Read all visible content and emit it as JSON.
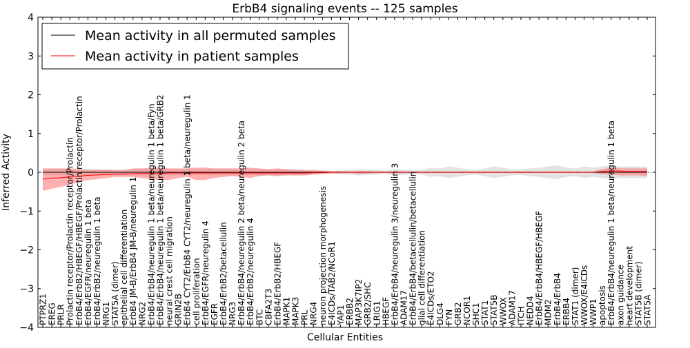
{
  "chart_data": {
    "type": "line",
    "title": "ErbB4 signaling events -- 125 samples",
    "xlabel": "Cellular Entities",
    "ylabel": "Inferred Activity",
    "ylim": [
      -4,
      4
    ],
    "yticks": [
      -4,
      -3,
      -2,
      -1,
      0,
      1,
      2,
      3,
      4
    ],
    "ytick_labels": [
      "−4",
      "−3",
      "−2",
      "−1",
      "0",
      "1",
      "2",
      "3",
      "4"
    ],
    "grid": false,
    "legend_position": "top-left",
    "categories": [
      "PTPRZ1",
      "EREG",
      "PRLR",
      "Prolactin receptor/Prolactin receptor/Prolactin",
      "ErbB4/ErbB2/HBEGF/HBEGF/Prolactin receptor/Prolactin",
      "ErbB4/EGFR/neuregulin 1 beta",
      "ErbB4/ErbB2/neuregulin 1 beta",
      "NRG1",
      "STAT5A (dimer)",
      "epithelial cell differentiation",
      "ErbB4 JM-B/ErbB4 JM-B/neuregulin 1",
      "NRG2",
      "ErbB4/ErbB4/neuregulin 1 beta/neuregulin 1 beta/Fyn",
      "ErbB4/ErbB4/neuregulin 1 beta/neuregulin 1 beta/GRB2",
      "neural crest cell migration",
      "GRIN2B",
      "ErbB4 CYT2/ErbB4 CYT2/neuregulin 1 beta/neuregulin 1",
      "cell proliferation",
      "ErbB4/EGFR/neuregulin 4",
      "EGFR",
      "ErbB4/ErbB2/betacellulin",
      "NRG3",
      "ErbB4/ErbB4/neuregulin 2 beta/neuregulin 2 beta",
      "ErbB4/ErbB2/neuregulin 4",
      "BTC",
      "CBFA2T3",
      "ErbB4/ErbB2/HBEGF",
      "MAPK1",
      "MAPK3",
      "PRL",
      "NRG4",
      "neuron projection morphogenesis",
      "E4ICDs/TAB2/NCoR1",
      "YAP1",
      "ERBB2",
      "MAP3K7IP2",
      "GRB2/SHC",
      "LRIG1",
      "HBEGF",
      "ErbB4/ErbB4/neuregulin 3/neuregulin 3",
      "ADAM17",
      "ErbB4/ErbB4/betacellulin/betacellulin",
      "glial cell differentiation",
      "E4ICDs/ETO2",
      "DLG4",
      "FYN",
      "GRB2",
      "NCOR1",
      "SHC1",
      "STAT1",
      "STAT5B",
      "WWOX",
      "ADAM17",
      "ITCH",
      "NEDD4",
      "ErbB4/ErbB4/HBEGF/HBEGF",
      "MDM2",
      "ErbB4/ErbB4",
      "ERBB4",
      "STAT1 (dimer)",
      "WWOX/E4ICDs",
      "WWP1",
      "apoptosis",
      "ErbB4/ErbB4/neuregulin 1 beta/neuregulin 1 beta",
      "axon guidance",
      "heart development",
      "STAT5B (dimer)",
      "STAT5A"
    ],
    "series": [
      {
        "name": "Mean activity in all permuted samples",
        "color": "#000000",
        "band_color": "#c0c0c0",
        "values": [
          0.0,
          0.0,
          0.0,
          0.0,
          0.0,
          0.0,
          0.0,
          0.0,
          0.0,
          0.0,
          0.0,
          0.0,
          0.0,
          0.0,
          0.0,
          0.0,
          0.0,
          0.0,
          0.0,
          0.0,
          0.0,
          0.0,
          0.0,
          0.0,
          0.0,
          0.0,
          0.0,
          0.0,
          0.0,
          0.0,
          0.0,
          0.0,
          0.0,
          0.0,
          0.0,
          0.0,
          0.0,
          0.0,
          0.0,
          0.0,
          0.0,
          0.0,
          0.0,
          0.0,
          0.0,
          0.0,
          0.0,
          0.0,
          0.0,
          0.0,
          0.0,
          0.0,
          0.0,
          0.0,
          0.0,
          0.0,
          0.0,
          0.0,
          0.0,
          0.0,
          0.0,
          0.0,
          0.0,
          0.0,
          0.0,
          0.0,
          0.0,
          0.0
        ],
        "lower": [
          -0.08,
          -0.08,
          -0.08,
          -0.08,
          -0.08,
          -0.08,
          -0.08,
          -0.08,
          -0.08,
          -0.08,
          -0.08,
          -0.08,
          -0.08,
          -0.08,
          -0.08,
          -0.08,
          -0.08,
          -0.08,
          -0.08,
          -0.08,
          -0.08,
          -0.08,
          -0.08,
          -0.08,
          -0.08,
          -0.08,
          -0.08,
          -0.08,
          -0.08,
          -0.08,
          -0.06,
          -0.05,
          -0.04,
          -0.05,
          -0.06,
          -0.08,
          -0.07,
          -0.06,
          -0.04,
          -0.08,
          -0.07,
          -0.05,
          -0.06,
          -0.12,
          -0.1,
          -0.15,
          -0.12,
          -0.08,
          -0.06,
          -0.1,
          -0.15,
          -0.12,
          -0.08,
          -0.07,
          -0.1,
          -0.12,
          -0.15,
          -0.18,
          -0.12,
          -0.1,
          -0.15,
          -0.12,
          -0.15,
          -0.18,
          -0.15,
          -0.15,
          -0.15,
          -0.15
        ],
        "upper": [
          0.08,
          0.08,
          0.08,
          0.08,
          0.08,
          0.08,
          0.08,
          0.08,
          0.08,
          0.08,
          0.08,
          0.08,
          0.08,
          0.08,
          0.08,
          0.08,
          0.08,
          0.08,
          0.08,
          0.08,
          0.08,
          0.08,
          0.08,
          0.08,
          0.08,
          0.08,
          0.08,
          0.08,
          0.08,
          0.08,
          0.06,
          0.05,
          0.04,
          0.05,
          0.06,
          0.08,
          0.07,
          0.06,
          0.04,
          0.08,
          0.07,
          0.05,
          0.06,
          0.12,
          0.1,
          0.15,
          0.12,
          0.08,
          0.06,
          0.1,
          0.15,
          0.12,
          0.08,
          0.07,
          0.1,
          0.12,
          0.15,
          0.18,
          0.12,
          0.1,
          0.15,
          0.12,
          0.15,
          0.18,
          0.15,
          0.15,
          0.15,
          0.15
        ]
      },
      {
        "name": "Mean activity in patient samples",
        "color": "#ff0000",
        "band_color": "#ff7070",
        "values": [
          -0.18,
          -0.15,
          -0.14,
          -0.12,
          -0.1,
          -0.08,
          -0.07,
          -0.06,
          -0.05,
          -0.04,
          -0.04,
          -0.03,
          -0.03,
          -0.03,
          -0.02,
          -0.02,
          -0.02,
          -0.02,
          -0.02,
          -0.02,
          -0.02,
          -0.02,
          -0.02,
          -0.02,
          -0.02,
          -0.02,
          -0.02,
          -0.02,
          -0.02,
          -0.02,
          -0.01,
          -0.01,
          0.0,
          0.0,
          0.0,
          0.0,
          0.0,
          0.0,
          0.0,
          0.0,
          0.0,
          0.0,
          0.0,
          0.0,
          0.0,
          0.0,
          0.0,
          0.0,
          0.0,
          0.0,
          0.0,
          0.0,
          0.0,
          0.0,
          0.0,
          0.0,
          0.0,
          0.0,
          0.0,
          0.0,
          0.0,
          0.0,
          0.02,
          0.04,
          0.03,
          0.02,
          0.02,
          0.02
        ],
        "lower": [
          -0.48,
          -0.42,
          -0.38,
          -0.32,
          -0.25,
          -0.2,
          -0.18,
          -0.15,
          -0.12,
          -0.12,
          -0.12,
          -0.15,
          -0.18,
          -0.2,
          -0.2,
          -0.15,
          -0.12,
          -0.2,
          -0.2,
          -0.15,
          -0.12,
          -0.1,
          -0.12,
          -0.15,
          -0.1,
          -0.08,
          -0.1,
          -0.08,
          -0.08,
          -0.08,
          -0.06,
          -0.04,
          -0.03,
          -0.03,
          -0.02,
          -0.04,
          -0.03,
          -0.02,
          -0.02,
          -0.03,
          -0.02,
          -0.02,
          -0.02,
          -0.02,
          -0.02,
          -0.02,
          -0.02,
          -0.02,
          -0.02,
          -0.02,
          -0.02,
          -0.02,
          -0.02,
          -0.02,
          -0.02,
          -0.02,
          -0.02,
          -0.02,
          -0.02,
          -0.02,
          -0.02,
          -0.02,
          -0.05,
          -0.06,
          -0.08,
          -0.08,
          -0.08,
          -0.1
        ],
        "upper": [
          0.1,
          0.1,
          0.1,
          0.1,
          0.08,
          0.06,
          0.06,
          0.06,
          0.05,
          0.05,
          0.1,
          0.1,
          0.12,
          0.12,
          0.1,
          0.1,
          0.1,
          0.12,
          0.12,
          0.1,
          0.1,
          0.1,
          0.1,
          0.12,
          0.1,
          0.08,
          0.1,
          0.08,
          0.06,
          0.05,
          0.05,
          0.04,
          0.03,
          0.03,
          0.02,
          0.03,
          0.03,
          0.02,
          0.02,
          0.03,
          0.02,
          0.02,
          0.02,
          0.02,
          0.02,
          0.02,
          0.02,
          0.02,
          0.02,
          0.02,
          0.02,
          0.02,
          0.02,
          0.02,
          0.02,
          0.02,
          0.02,
          0.02,
          0.02,
          0.02,
          0.02,
          0.02,
          0.08,
          0.12,
          0.1,
          0.1,
          0.1,
          0.1
        ]
      }
    ]
  }
}
